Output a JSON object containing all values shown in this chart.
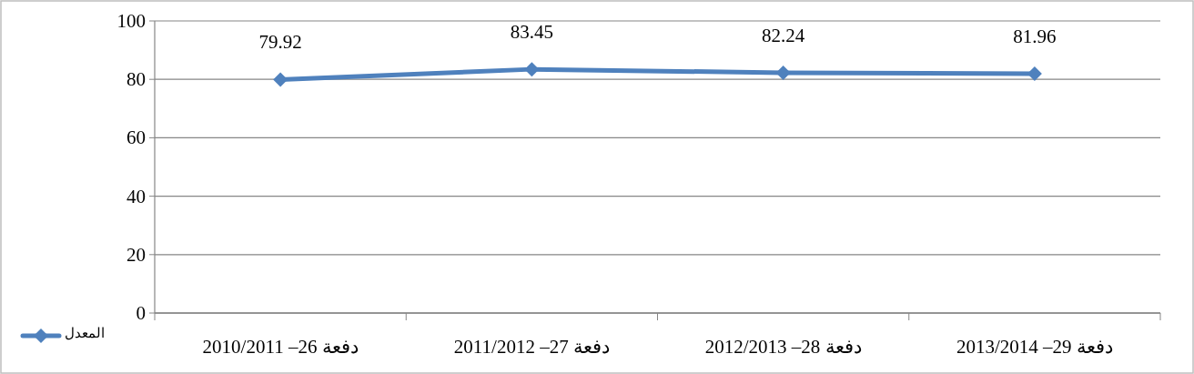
{
  "chart_data": {
    "type": "line",
    "categories": [
      "دفعة 26– 2010/2011",
      "دفعة 27– 2011/2012",
      "دفعة 28– 2012/2013",
      "دفعة 29– 2013/2014"
    ],
    "series": [
      {
        "name": "المعدل",
        "color": "#4f81bd",
        "values": [
          79.92,
          83.45,
          82.24,
          81.96
        ]
      }
    ],
    "ylim": [
      0,
      100
    ],
    "yticks": [
      0,
      20,
      40,
      60,
      80,
      100
    ],
    "grid": "y",
    "legend": "bottom left",
    "marker": "diamond",
    "data_labels": true
  }
}
